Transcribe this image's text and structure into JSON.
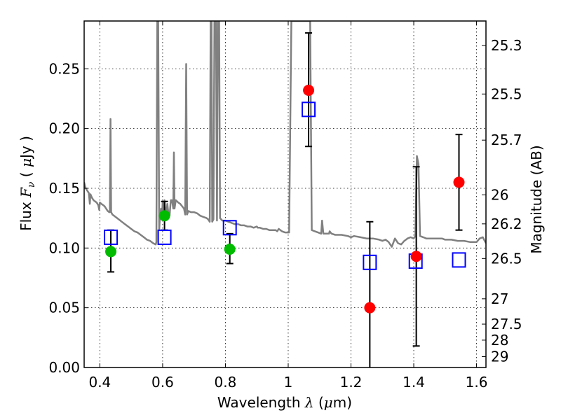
{
  "chart_data": {
    "type": "scatter",
    "title": "",
    "xlabel": "Wavelength  λ (μm)",
    "xlabel_parts": {
      "text": "Wavelength  ",
      "symbol": "λ",
      "unit_open": " (",
      "unit_mu": "μ",
      "unit_rest": "m)"
    },
    "ylabel": "Flux  Fν  ( μJy )",
    "ylabel_parts": {
      "text": "Flux  ",
      "symbol": "F",
      "sub": "ν",
      "unit_open": "  ( ",
      "unit_mu": "μ",
      "unit_rest": "Jy )"
    },
    "y2label": "Magnitude (AB)",
    "xlim": [
      0.35,
      1.63
    ],
    "ylim": [
      0.0,
      0.29
    ],
    "grid": true,
    "xticks": [
      0.4,
      0.6,
      0.8,
      1.0,
      1.2,
      1.4,
      1.6
    ],
    "xtick_labels": [
      "0.4",
      "0.6",
      "0.8",
      "1",
      "1.2",
      "1.4",
      "1.6"
    ],
    "yticks": [
      0.0,
      0.05,
      0.1,
      0.15,
      0.2,
      0.25
    ],
    "ytick_labels": [
      "0.00",
      "0.05",
      "0.10",
      "0.15",
      "0.20",
      "0.25"
    ],
    "y2ticks": [
      {
        "label": "25.3",
        "flux": 0.2695
      },
      {
        "label": "25.5",
        "flux": 0.2289
      },
      {
        "label": "25.7",
        "flux": 0.1903
      },
      {
        "label": "26",
        "flux": 0.1445
      },
      {
        "label": "26.2",
        "flux": 0.1202
      },
      {
        "label": "26.5",
        "flux": 0.0912
      },
      {
        "label": "27",
        "flux": 0.0575
      },
      {
        "label": "27.5",
        "flux": 0.0363
      },
      {
        "label": "28",
        "flux": 0.0229
      },
      {
        "label": "29",
        "flux": 0.0091
      }
    ],
    "colors": {
      "spectrum": "#808080",
      "green_points": "#00bb00",
      "red_points": "#ff0000",
      "model_squares": "#0000ff",
      "errorbars": "#000000",
      "grid": "#000000"
    },
    "series": [
      {
        "name": "spectrum",
        "kind": "line",
        "points": [
          [
            0.35,
            0.155
          ],
          [
            0.355,
            0.15
          ],
          [
            0.36,
            0.148
          ],
          [
            0.365,
            0.146
          ],
          [
            0.368,
            0.137
          ],
          [
            0.37,
            0.145
          ],
          [
            0.375,
            0.142
          ],
          [
            0.38,
            0.14
          ],
          [
            0.385,
            0.139
          ],
          [
            0.39,
            0.138
          ],
          [
            0.395,
            0.136
          ],
          [
            0.398,
            0.132
          ],
          [
            0.4,
            0.138
          ],
          [
            0.405,
            0.137
          ],
          [
            0.41,
            0.136
          ],
          [
            0.415,
            0.135
          ],
          [
            0.42,
            0.133
          ],
          [
            0.425,
            0.131
          ],
          [
            0.43,
            0.13
          ],
          [
            0.432,
            0.13
          ],
          [
            0.434,
            0.208
          ],
          [
            0.436,
            0.13
          ],
          [
            0.44,
            0.128
          ],
          [
            0.45,
            0.126
          ],
          [
            0.46,
            0.124
          ],
          [
            0.47,
            0.122
          ],
          [
            0.48,
            0.12
          ],
          [
            0.49,
            0.118
          ],
          [
            0.5,
            0.116
          ],
          [
            0.51,
            0.114
          ],
          [
            0.52,
            0.113
          ],
          [
            0.53,
            0.111
          ],
          [
            0.54,
            0.109
          ],
          [
            0.55,
            0.107
          ],
          [
            0.56,
            0.106
          ],
          [
            0.57,
            0.104
          ],
          [
            0.578,
            0.103
          ],
          [
            0.58,
            0.105
          ],
          [
            0.583,
            0.29
          ],
          [
            0.586,
            0.29
          ],
          [
            0.589,
            0.115
          ],
          [
            0.592,
            0.128
          ],
          [
            0.595,
            0.133
          ],
          [
            0.598,
            0.125
          ],
          [
            0.6,
            0.138
          ],
          [
            0.603,
            0.13
          ],
          [
            0.606,
            0.14
          ],
          [
            0.609,
            0.132
          ],
          [
            0.612,
            0.128
          ],
          [
            0.615,
            0.137
          ],
          [
            0.618,
            0.13
          ],
          [
            0.622,
            0.127
          ],
          [
            0.626,
            0.14
          ],
          [
            0.63,
            0.14
          ],
          [
            0.634,
            0.133
          ],
          [
            0.636,
            0.18
          ],
          [
            0.638,
            0.133
          ],
          [
            0.642,
            0.14
          ],
          [
            0.646,
            0.139
          ],
          [
            0.65,
            0.138
          ],
          [
            0.656,
            0.137
          ],
          [
            0.662,
            0.135
          ],
          [
            0.668,
            0.133
          ],
          [
            0.672,
            0.128
          ],
          [
            0.675,
            0.254
          ],
          [
            0.678,
            0.128
          ],
          [
            0.682,
            0.131
          ],
          [
            0.69,
            0.13
          ],
          [
            0.7,
            0.13
          ],
          [
            0.71,
            0.129
          ],
          [
            0.72,
            0.127
          ],
          [
            0.73,
            0.126
          ],
          [
            0.74,
            0.125
          ],
          [
            0.745,
            0.124
          ],
          [
            0.75,
            0.122
          ],
          [
            0.753,
            0.29
          ],
          [
            0.756,
            0.29
          ],
          [
            0.758,
            0.122
          ],
          [
            0.762,
            0.124
          ],
          [
            0.765,
            0.29
          ],
          [
            0.77,
            0.29
          ],
          [
            0.773,
            0.123
          ],
          [
            0.776,
            0.29
          ],
          [
            0.78,
            0.29
          ],
          [
            0.783,
            0.125
          ],
          [
            0.79,
            0.123
          ],
          [
            0.8,
            0.123
          ],
          [
            0.81,
            0.122
          ],
          [
            0.82,
            0.121
          ],
          [
            0.83,
            0.12
          ],
          [
            0.84,
            0.12
          ],
          [
            0.85,
            0.119
          ],
          [
            0.86,
            0.119
          ],
          [
            0.87,
            0.118
          ],
          [
            0.88,
            0.118
          ],
          [
            0.89,
            0.117
          ],
          [
            0.9,
            0.118
          ],
          [
            0.903,
            0.117
          ],
          [
            0.91,
            0.117
          ],
          [
            0.92,
            0.116
          ],
          [
            0.93,
            0.116
          ],
          [
            0.94,
            0.115
          ],
          [
            0.95,
            0.115
          ],
          [
            0.96,
            0.115
          ],
          [
            0.965,
            0.114
          ],
          [
            0.97,
            0.116
          ],
          [
            0.98,
            0.114
          ],
          [
            0.99,
            0.113
          ],
          [
            1.0,
            0.113
          ],
          [
            1.003,
            0.113
          ],
          [
            1.01,
            0.29
          ],
          [
            1.03,
            0.29
          ],
          [
            1.04,
            0.29
          ],
          [
            1.045,
            0.29
          ],
          [
            1.05,
            0.29
          ],
          [
            1.06,
            0.29
          ],
          [
            1.065,
            0.29
          ],
          [
            1.07,
            0.29
          ],
          [
            1.075,
            0.115
          ],
          [
            1.085,
            0.114
          ],
          [
            1.095,
            0.113
          ],
          [
            1.105,
            0.112
          ],
          [
            1.108,
            0.123
          ],
          [
            1.112,
            0.112
          ],
          [
            1.12,
            0.112
          ],
          [
            1.13,
            0.112
          ],
          [
            1.132,
            0.114
          ],
          [
            1.138,
            0.112
          ],
          [
            1.15,
            0.111
          ],
          [
            1.17,
            0.111
          ],
          [
            1.19,
            0.11
          ],
          [
            1.2,
            0.109
          ],
          [
            1.21,
            0.11
          ],
          [
            1.23,
            0.109
          ],
          [
            1.25,
            0.108
          ],
          [
            1.27,
            0.108
          ],
          [
            1.29,
            0.107
          ],
          [
            1.3,
            0.106
          ],
          [
            1.31,
            0.107
          ],
          [
            1.32,
            0.105
          ],
          [
            1.33,
            0.101
          ],
          [
            1.34,
            0.108
          ],
          [
            1.35,
            0.104
          ],
          [
            1.36,
            0.103
          ],
          [
            1.37,
            0.106
          ],
          [
            1.38,
            0.108
          ],
          [
            1.39,
            0.109
          ],
          [
            1.4,
            0.108
          ],
          [
            1.405,
            0.11
          ],
          [
            1.41,
            0.177
          ],
          [
            1.415,
            0.17
          ],
          [
            1.42,
            0.11
          ],
          [
            1.43,
            0.109
          ],
          [
            1.44,
            0.108
          ],
          [
            1.46,
            0.108
          ],
          [
            1.48,
            0.108
          ],
          [
            1.49,
            0.108
          ],
          [
            1.5,
            0.107
          ],
          [
            1.52,
            0.107
          ],
          [
            1.54,
            0.106
          ],
          [
            1.56,
            0.106
          ],
          [
            1.58,
            0.105
          ],
          [
            1.6,
            0.105
          ],
          [
            1.61,
            0.108
          ],
          [
            1.62,
            0.109
          ],
          [
            1.63,
            0.104
          ]
        ]
      },
      {
        "name": "green-photometry",
        "kind": "errorbar",
        "marker": "circle",
        "points": [
          {
            "x": 0.435,
            "y": 0.097,
            "ylo": 0.08,
            "yhi": 0.115
          },
          {
            "x": 0.606,
            "y": 0.127,
            "ylo": 0.115,
            "yhi": 0.139
          },
          {
            "x": 0.814,
            "y": 0.099,
            "ylo": 0.087,
            "yhi": 0.112
          }
        ]
      },
      {
        "name": "red-photometry",
        "kind": "errorbar",
        "marker": "circle",
        "points": [
          {
            "x": 1.065,
            "y": 0.232,
            "ylo": 0.185,
            "yhi": 0.28
          },
          {
            "x": 1.26,
            "y": 0.05,
            "ylo": 0.0,
            "yhi": 0.122
          },
          {
            "x": 1.408,
            "y": 0.093,
            "ylo": 0.018,
            "yhi": 0.168
          },
          {
            "x": 1.544,
            "y": 0.155,
            "ylo": 0.115,
            "yhi": 0.195
          }
        ]
      },
      {
        "name": "model-photometry",
        "kind": "scatter",
        "marker": "open-square",
        "points": [
          {
            "x": 0.435,
            "y": 0.109
          },
          {
            "x": 0.606,
            "y": 0.109
          },
          {
            "x": 0.814,
            "y": 0.117
          },
          {
            "x": 1.065,
            "y": 0.216
          },
          {
            "x": 1.26,
            "y": 0.088
          },
          {
            "x": 1.406,
            "y": 0.089
          },
          {
            "x": 1.544,
            "y": 0.09
          }
        ]
      }
    ]
  }
}
